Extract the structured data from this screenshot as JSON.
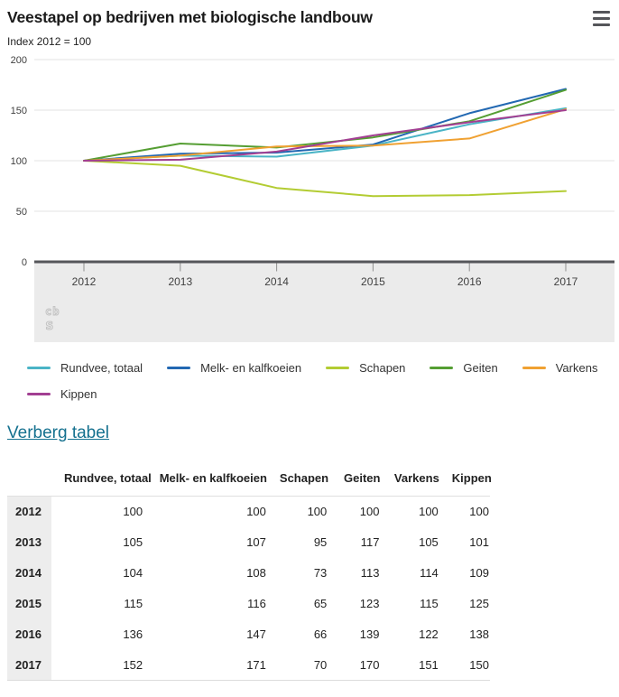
{
  "header": {
    "title": "Veestapel op bedrijven met biologische landbouw",
    "subtitle": "Index 2012 = 100"
  },
  "menu": {
    "icon": "hamburger-menu-icon"
  },
  "logo": {
    "line1": "cb",
    "line2": "s"
  },
  "chart_data": {
    "type": "line",
    "title": "Veestapel op bedrijven met biologische landbouw",
    "unit": "Index 2012 = 100",
    "categories": [
      "2012",
      "2013",
      "2014",
      "2015",
      "2016",
      "2017"
    ],
    "yticks": [
      0,
      50,
      100,
      150,
      200
    ],
    "ylim": [
      0,
      200
    ],
    "grid": true,
    "legend_position": "bottom",
    "series": [
      {
        "name": "Rundvee, totaal",
        "color": "#4AB4C6",
        "values": [
          100,
          105,
          104,
          115,
          136,
          152
        ]
      },
      {
        "name": "Melk- en kalfkoeien",
        "color": "#2268B2",
        "values": [
          100,
          107,
          108,
          116,
          147,
          171
        ]
      },
      {
        "name": "Schapen",
        "color": "#B3CC33",
        "values": [
          100,
          95,
          73,
          65,
          66,
          70
        ]
      },
      {
        "name": "Geiten",
        "color": "#559E33",
        "values": [
          100,
          117,
          113,
          123,
          139,
          170
        ]
      },
      {
        "name": "Varkens",
        "color": "#F0A132",
        "values": [
          100,
          105,
          114,
          115,
          122,
          151
        ]
      },
      {
        "name": "Kippen",
        "color": "#A23F92",
        "values": [
          100,
          101,
          109,
          125,
          138,
          150
        ]
      }
    ]
  },
  "table": {
    "toggle_label": "Verberg tabel",
    "columns": [
      "Rundvee, totaal",
      "Melk- en kalfkoeien",
      "Schapen",
      "Geiten",
      "Varkens",
      "Kippen"
    ],
    "rows": [
      {
        "label": "2012",
        "values": [
          100,
          100,
          100,
          100,
          100,
          100
        ]
      },
      {
        "label": "2013",
        "values": [
          105,
          107,
          95,
          117,
          105,
          101
        ]
      },
      {
        "label": "2014",
        "values": [
          104,
          108,
          73,
          113,
          114,
          109
        ]
      },
      {
        "label": "2015",
        "values": [
          115,
          116,
          65,
          123,
          115,
          125
        ]
      },
      {
        "label": "2016",
        "values": [
          136,
          147,
          66,
          139,
          122,
          138
        ]
      },
      {
        "label": "2017",
        "values": [
          152,
          171,
          70,
          170,
          151,
          150
        ]
      }
    ]
  },
  "colors": {
    "link": "#15718F",
    "axis": "#55565A",
    "band": "#EBEBEB",
    "grid": "#E3E3E3",
    "tick": "#8F8F8F",
    "row_header_bg": "#EDEDED",
    "text": "#222222"
  }
}
